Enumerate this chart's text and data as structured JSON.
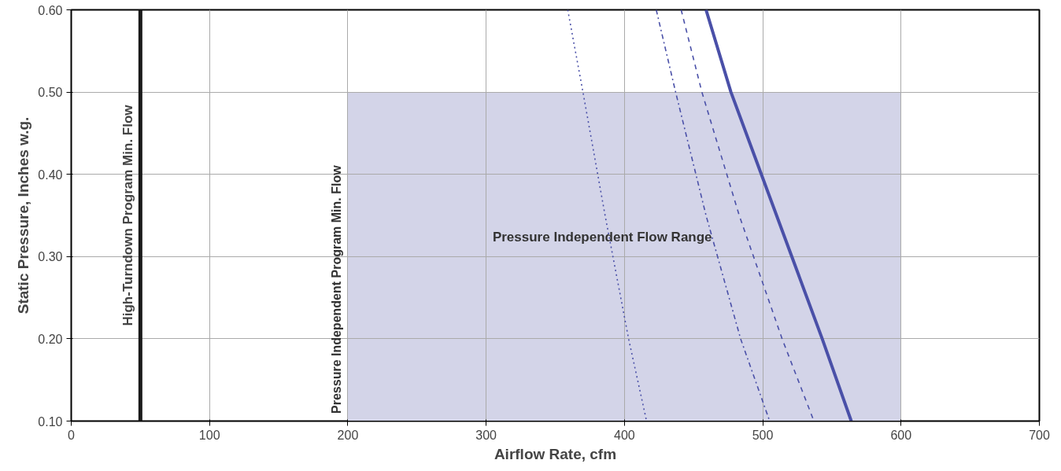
{
  "chart_data": {
    "type": "line",
    "xlabel": "Airflow Rate, cfm",
    "ylabel": "Static Pressure, Inches w.g.",
    "xlim": [
      0,
      700
    ],
    "ylim": [
      0.1,
      0.6
    ],
    "xticks": [
      0,
      100,
      200,
      300,
      400,
      500,
      600,
      700
    ],
    "yticks": [
      {
        "value": 0.1,
        "label": "0.10"
      },
      {
        "value": 0.2,
        "label": "0.20"
      },
      {
        "value": 0.3,
        "label": "0.30"
      },
      {
        "value": 0.4,
        "label": "0.40"
      },
      {
        "value": 0.5,
        "label": "0.50"
      },
      {
        "value": 0.6,
        "label": "0.60"
      }
    ],
    "grid": true,
    "marker": "none",
    "series": [
      {
        "type": "area",
        "color": "#d3d4e8",
        "x": [
          200,
          600
        ],
        "values": [
          0.5,
          0.5
        ]
      },
      {
        "color": "#4a50a8",
        "line_style": "dotted",
        "x": [
          359,
          370,
          386,
          403,
          416
        ],
        "values": [
          0.6,
          0.5,
          0.35,
          0.2,
          0.1
        ]
      },
      {
        "color": "#4a50a8",
        "line_style": "dashdot",
        "x": [
          423,
          437,
          459,
          484,
          505
        ],
        "values": [
          0.6,
          0.5,
          0.35,
          0.2,
          0.1
        ]
      },
      {
        "color": "#4a50a8",
        "line_style": "dashed",
        "x": [
          441,
          456,
          483,
          514,
          537
        ],
        "values": [
          0.6,
          0.5,
          0.35,
          0.2,
          0.1
        ]
      },
      {
        "color": "#4a50a8",
        "line_style": "solid",
        "x": [
          459,
          477,
          499,
          521,
          543,
          564
        ],
        "values": [
          0.6,
          0.5,
          0.4,
          0.3,
          0.2,
          0.1
        ]
      }
    ],
    "ref_lines": [
      {
        "axis": "x",
        "value": 50,
        "color": "#1a1a1a",
        "label": "High-Turndown Program Min. Flow"
      }
    ],
    "annotations": [
      "Pressure Independent Program Min. Flow",
      "Pressure Independent Flow Range"
    ]
  }
}
